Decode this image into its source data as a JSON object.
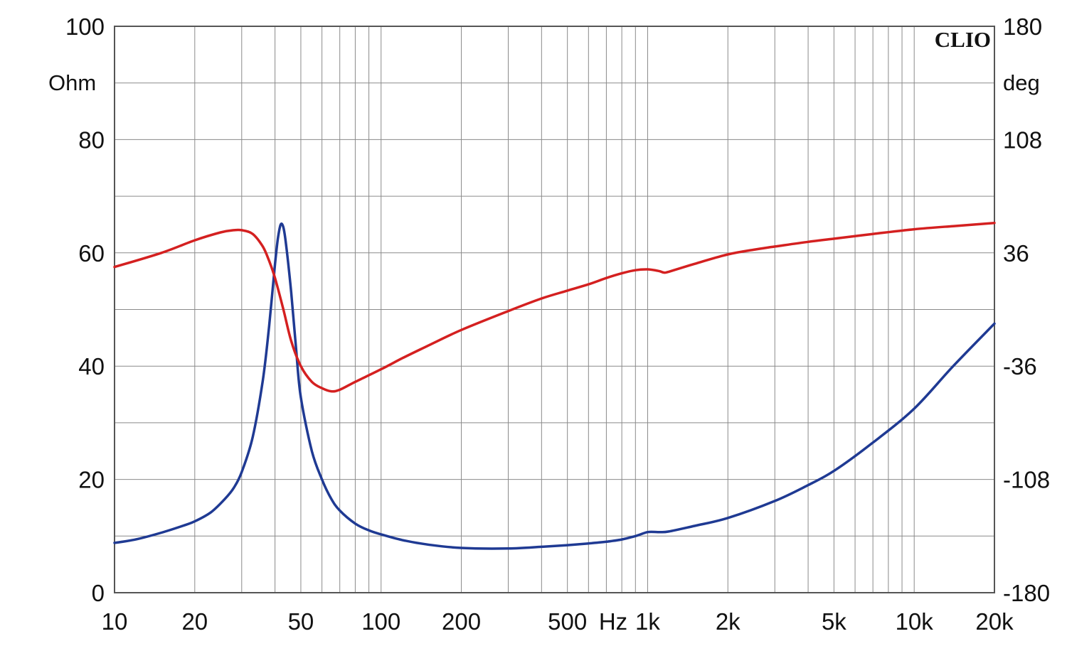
{
  "chart_data": {
    "type": "line",
    "brand": "CLIO",
    "x_scale": "log",
    "xlim": [
      10,
      20000
    ],
    "x_unit_label": "Hz",
    "x_ticks": [
      {
        "value": 10,
        "label": "10"
      },
      {
        "value": 20,
        "label": "20"
      },
      {
        "value": 50,
        "label": "50"
      },
      {
        "value": 100,
        "label": "100"
      },
      {
        "value": 200,
        "label": "200"
      },
      {
        "value": 500,
        "label": "500"
      },
      {
        "value": 1000,
        "label": "1k"
      },
      {
        "value": 2000,
        "label": "2k"
      },
      {
        "value": 5000,
        "label": "5k"
      },
      {
        "value": 10000,
        "label": "10k"
      },
      {
        "value": 20000,
        "label": "20k"
      }
    ],
    "y_left": {
      "unit": "Ohm",
      "range": [
        0,
        100
      ],
      "ticks": [
        "0",
        "20",
        "40",
        "60",
        "80",
        "100"
      ]
    },
    "y_right": {
      "unit": "deg",
      "range": [
        -180,
        180
      ],
      "ticks": [
        "-180",
        "-108",
        "-36",
        "36",
        "108",
        "180"
      ]
    },
    "grid": true,
    "series": [
      {
        "id": "impedance",
        "axis": "left",
        "color": "#1f3a93",
        "points": [
          [
            10,
            8.8
          ],
          [
            12,
            9.4
          ],
          [
            15,
            10.6
          ],
          [
            18,
            11.8
          ],
          [
            20,
            12.6
          ],
          [
            23,
            14.2
          ],
          [
            26,
            16.6
          ],
          [
            28,
            18.5
          ],
          [
            30,
            21.3
          ],
          [
            33,
            27.5
          ],
          [
            36,
            37.5
          ],
          [
            38,
            47.0
          ],
          [
            40,
            58.0
          ],
          [
            41,
            62.5
          ],
          [
            42,
            65.0
          ],
          [
            43,
            64.5
          ],
          [
            44,
            61.5
          ],
          [
            46,
            53.0
          ],
          [
            48,
            43.0
          ],
          [
            50,
            34.5
          ],
          [
            55,
            25.0
          ],
          [
            60,
            20.0
          ],
          [
            65,
            16.6
          ],
          [
            70,
            14.5
          ],
          [
            80,
            12.2
          ],
          [
            90,
            11.0
          ],
          [
            100,
            10.3
          ],
          [
            120,
            9.3
          ],
          [
            150,
            8.5
          ],
          [
            200,
            7.9
          ],
          [
            300,
            7.8
          ],
          [
            400,
            8.1
          ],
          [
            500,
            8.4
          ],
          [
            600,
            8.7
          ],
          [
            700,
            9.0
          ],
          [
            800,
            9.4
          ],
          [
            900,
            10.0
          ],
          [
            1000,
            10.7
          ],
          [
            1100,
            10.7
          ],
          [
            1200,
            10.8
          ],
          [
            1500,
            11.8
          ],
          [
            2000,
            13.2
          ],
          [
            3000,
            16.2
          ],
          [
            4000,
            19.0
          ],
          [
            5000,
            21.5
          ],
          [
            7000,
            26.5
          ],
          [
            10000,
            32.5
          ],
          [
            14000,
            40.0
          ],
          [
            20000,
            47.5
          ]
        ]
      },
      {
        "id": "phase",
        "axis": "right",
        "color": "#d42020",
        "points": [
          [
            10,
            27
          ],
          [
            15,
            36
          ],
          [
            20,
            44
          ],
          [
            25,
            49
          ],
          [
            28,
            50.4
          ],
          [
            30,
            50.4
          ],
          [
            33,
            48
          ],
          [
            36,
            40
          ],
          [
            38,
            31
          ],
          [
            40,
            20
          ],
          [
            43,
            0
          ],
          [
            46,
            -20
          ],
          [
            50,
            -36
          ],
          [
            55,
            -46
          ],
          [
            60,
            -50
          ],
          [
            65,
            -52
          ],
          [
            70,
            -51
          ],
          [
            80,
            -46
          ],
          [
            100,
            -38
          ],
          [
            120,
            -31
          ],
          [
            150,
            -23
          ],
          [
            200,
            -13
          ],
          [
            300,
            -1
          ],
          [
            400,
            7
          ],
          [
            500,
            12
          ],
          [
            600,
            16
          ],
          [
            700,
            20
          ],
          [
            800,
            23
          ],
          [
            900,
            25
          ],
          [
            1000,
            25.5
          ],
          [
            1100,
            24.5
          ],
          [
            1150,
            23.5
          ],
          [
            1200,
            24
          ],
          [
            1500,
            29
          ],
          [
            2000,
            35
          ],
          [
            2500,
            38
          ],
          [
            3000,
            40
          ],
          [
            4000,
            43
          ],
          [
            5000,
            45
          ],
          [
            7000,
            48
          ],
          [
            10000,
            51
          ],
          [
            14000,
            53
          ],
          [
            20000,
            55
          ]
        ]
      }
    ]
  }
}
